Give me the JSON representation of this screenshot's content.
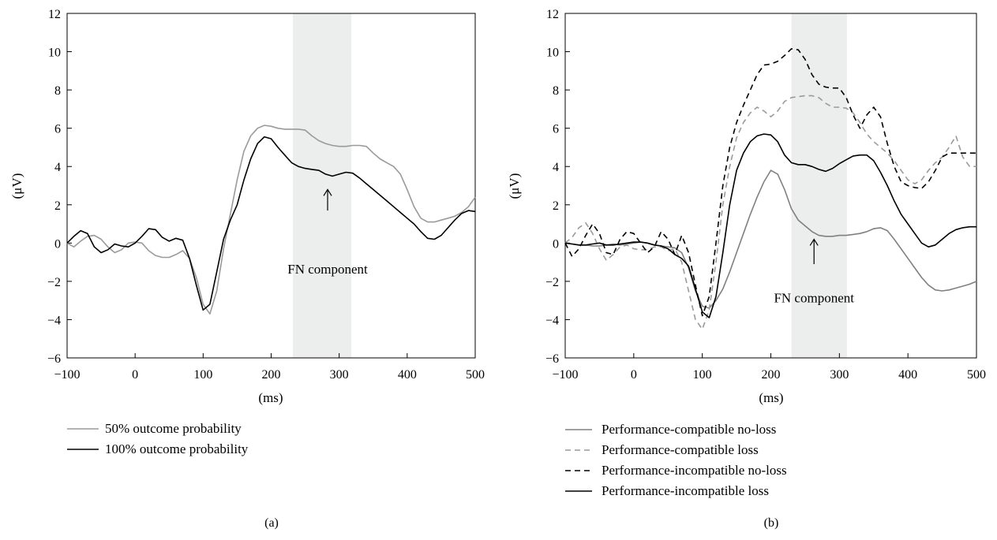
{
  "chart_data": [
    {
      "type": "line",
      "panel_label": "(a)",
      "xlabel": "(ms)",
      "ylabel": "(μV)",
      "xlim": [
        -100,
        500
      ],
      "ylim": [
        -6,
        12
      ],
      "xticks": [
        -100,
        0,
        100,
        200,
        300,
        400,
        500
      ],
      "yticks": [
        -6,
        -4,
        -2,
        0,
        2,
        4,
        6,
        8,
        10,
        12
      ],
      "shaded_region": [
        232,
        318
      ],
      "grid": false,
      "legend_position": "below",
      "annotation": {
        "text": "FN component",
        "arrow_x": 283,
        "arrow_from_y": 1.7,
        "arrow_to_y": 2.8,
        "text_x": 283,
        "text_y": -1.6
      },
      "series": [
        {
          "name": "50% outcome probability",
          "color": "#9a9a9a",
          "dash": "solid",
          "width": 1.6,
          "x": [
            -100,
            -90,
            -80,
            -70,
            -60,
            -50,
            -40,
            -30,
            -20,
            -10,
            0,
            10,
            20,
            30,
            40,
            50,
            60,
            70,
            80,
            90,
            100,
            110,
            120,
            130,
            140,
            150,
            160,
            170,
            180,
            190,
            200,
            210,
            220,
            230,
            240,
            250,
            260,
            270,
            280,
            290,
            300,
            310,
            320,
            330,
            340,
            350,
            360,
            370,
            380,
            390,
            400,
            410,
            420,
            430,
            440,
            450,
            460,
            470,
            480,
            490,
            500
          ],
          "y": [
            0,
            -0.2,
            0.1,
            0.35,
            0.4,
            0.2,
            -0.2,
            -0.5,
            -0.35,
            0,
            0.05,
            0,
            -0.4,
            -0.65,
            -0.75,
            -0.75,
            -0.6,
            -0.4,
            -0.8,
            -1.8,
            -3.2,
            -3.7,
            -2.5,
            -0.3,
            1.5,
            3.3,
            4.8,
            5.6,
            6.0,
            6.15,
            6.1,
            6.0,
            5.95,
            5.95,
            5.95,
            5.9,
            5.6,
            5.35,
            5.2,
            5.1,
            5.05,
            5.05,
            5.1,
            5.1,
            5.05,
            4.7,
            4.4,
            4.2,
            4.0,
            3.6,
            2.8,
            1.9,
            1.3,
            1.1,
            1.1,
            1.2,
            1.3,
            1.4,
            1.6,
            1.9,
            2.4
          ]
        },
        {
          "name": "100% outcome probability",
          "color": "#000000",
          "dash": "solid",
          "width": 1.6,
          "x": [
            -100,
            -90,
            -80,
            -70,
            -60,
            -50,
            -40,
            -30,
            -20,
            -10,
            0,
            10,
            20,
            30,
            40,
            50,
            60,
            70,
            80,
            90,
            100,
            110,
            120,
            130,
            140,
            150,
            160,
            170,
            180,
            190,
            200,
            210,
            220,
            230,
            240,
            250,
            260,
            270,
            280,
            290,
            300,
            310,
            320,
            330,
            340,
            350,
            360,
            370,
            380,
            390,
            400,
            410,
            420,
            430,
            440,
            450,
            460,
            470,
            480,
            490,
            500
          ],
          "y": [
            0,
            0.35,
            0.65,
            0.5,
            -0.2,
            -0.5,
            -0.35,
            -0.05,
            -0.15,
            -0.2,
            0,
            0.35,
            0.75,
            0.7,
            0.3,
            0.1,
            0.25,
            0.15,
            -0.8,
            -2.2,
            -3.5,
            -3.2,
            -1.5,
            0.2,
            1.2,
            2.0,
            3.3,
            4.4,
            5.2,
            5.55,
            5.45,
            5.0,
            4.6,
            4.2,
            4.0,
            3.9,
            3.85,
            3.8,
            3.6,
            3.5,
            3.6,
            3.7,
            3.65,
            3.4,
            3.1,
            2.8,
            2.5,
            2.2,
            1.9,
            1.6,
            1.3,
            1.0,
            0.6,
            0.25,
            0.2,
            0.4,
            0.8,
            1.2,
            1.55,
            1.7,
            1.65
          ]
        }
      ]
    },
    {
      "type": "line",
      "panel_label": "(b)",
      "xlabel": "(ms)",
      "ylabel": "(μV)",
      "xlim": [
        -100,
        500
      ],
      "ylim": [
        -6,
        12
      ],
      "xticks": [
        -100,
        0,
        100,
        200,
        300,
        400,
        500
      ],
      "yticks": [
        -6,
        -4,
        -2,
        0,
        2,
        4,
        6,
        8,
        10,
        12
      ],
      "shaded_region": [
        230,
        311
      ],
      "grid": false,
      "legend_position": "below",
      "annotation": {
        "text": "FN component",
        "arrow_x": 263,
        "arrow_from_y": -1.1,
        "arrow_to_y": 0.2,
        "text_x": 263,
        "text_y": -3.1
      },
      "series": [
        {
          "name": "Performance-compatible no-loss",
          "color": "#808080",
          "dash": "solid",
          "width": 1.6,
          "x": [
            -100,
            -90,
            -80,
            -70,
            -60,
            -50,
            -40,
            -30,
            -20,
            -10,
            0,
            10,
            20,
            30,
            40,
            50,
            60,
            70,
            80,
            90,
            100,
            110,
            120,
            130,
            140,
            150,
            160,
            170,
            180,
            190,
            200,
            210,
            220,
            230,
            240,
            250,
            260,
            270,
            280,
            290,
            300,
            310,
            320,
            330,
            340,
            350,
            360,
            370,
            380,
            390,
            400,
            410,
            420,
            430,
            440,
            450,
            460,
            470,
            480,
            490,
            500
          ],
          "y": [
            0,
            -0.05,
            -0.1,
            -0.1,
            -0.15,
            -0.15,
            -0.1,
            -0.05,
            -0.1,
            -0.05,
            0,
            0.05,
            0,
            -0.1,
            -0.15,
            -0.2,
            -0.25,
            -0.5,
            -1.3,
            -2.5,
            -3.3,
            -3.4,
            -3.0,
            -2.4,
            -1.5,
            -0.5,
            0.5,
            1.5,
            2.4,
            3.2,
            3.8,
            3.6,
            2.8,
            1.8,
            1.2,
            0.9,
            0.6,
            0.4,
            0.35,
            0.35,
            0.4,
            0.4,
            0.45,
            0.5,
            0.6,
            0.75,
            0.8,
            0.65,
            0.2,
            -0.3,
            -0.8,
            -1.3,
            -1.8,
            -2.2,
            -2.45,
            -2.5,
            -2.45,
            -2.35,
            -2.25,
            -2.15,
            -2.0
          ]
        },
        {
          "name": "Performance-compatible loss",
          "color": "#9a9a9a",
          "dash": "dashed",
          "width": 1.6,
          "x": [
            -100,
            -90,
            -80,
            -70,
            -60,
            -50,
            -40,
            -30,
            -20,
            -10,
            0,
            10,
            20,
            30,
            40,
            50,
            60,
            70,
            80,
            90,
            100,
            110,
            120,
            130,
            140,
            150,
            160,
            170,
            180,
            190,
            200,
            210,
            220,
            230,
            240,
            250,
            260,
            270,
            280,
            290,
            300,
            310,
            320,
            330,
            340,
            350,
            360,
            370,
            380,
            390,
            400,
            410,
            420,
            430,
            440,
            450,
            460,
            470,
            480,
            490,
            500
          ],
          "y": [
            0,
            0.3,
            0.8,
            1.05,
            0.5,
            -0.3,
            -0.9,
            -0.6,
            -0.2,
            -0.1,
            -0.3,
            -0.35,
            -0.35,
            -0.2,
            -0.2,
            -0.4,
            -0.3,
            -1.0,
            -2.5,
            -4.0,
            -4.5,
            -3.5,
            -1.0,
            2.0,
            4.0,
            5.5,
            6.3,
            6.8,
            7.1,
            6.9,
            6.6,
            6.9,
            7.4,
            7.6,
            7.65,
            7.7,
            7.7,
            7.6,
            7.3,
            7.1,
            7.1,
            7.05,
            6.8,
            6.3,
            5.7,
            5.3,
            5.0,
            4.7,
            4.3,
            3.8,
            3.3,
            3.1,
            3.3,
            3.8,
            4.2,
            4.5,
            5.0,
            5.6,
            4.5,
            4.0,
            4.0
          ]
        },
        {
          "name": "Performance-incompatible no-loss",
          "color": "#000000",
          "dash": "dashed",
          "width": 1.6,
          "x": [
            -100,
            -90,
            -80,
            -70,
            -60,
            -50,
            -40,
            -30,
            -20,
            -10,
            0,
            10,
            20,
            30,
            40,
            50,
            60,
            70,
            80,
            90,
            100,
            110,
            120,
            130,
            140,
            150,
            160,
            170,
            180,
            190,
            200,
            210,
            220,
            230,
            240,
            250,
            260,
            270,
            280,
            290,
            300,
            310,
            320,
            330,
            340,
            350,
            360,
            370,
            380,
            390,
            400,
            410,
            420,
            430,
            440,
            450,
            460,
            470,
            480,
            490,
            500
          ],
          "y": [
            0,
            -0.7,
            -0.3,
            0.4,
            1.0,
            0.5,
            -0.5,
            -0.6,
            0.2,
            0.6,
            0.5,
            0.0,
            -0.5,
            -0.2,
            0.6,
            0.2,
            -0.6,
            0.4,
            -0.5,
            -2.2,
            -3.8,
            -2.8,
            0.0,
            3.0,
            5.0,
            6.3,
            7.2,
            8.0,
            8.8,
            9.3,
            9.35,
            9.5,
            9.8,
            10.15,
            10.1,
            9.6,
            8.8,
            8.3,
            8.15,
            8.1,
            8.1,
            7.6,
            6.7,
            6.0,
            6.7,
            7.1,
            6.6,
            5.2,
            4.0,
            3.2,
            3.0,
            2.9,
            2.85,
            3.2,
            3.8,
            4.5,
            4.7,
            4.7,
            4.7,
            4.7,
            4.7
          ]
        },
        {
          "name": "Performance-incompatible loss",
          "color": "#000000",
          "dash": "solid",
          "width": 1.6,
          "x": [
            -100,
            -90,
            -80,
            -70,
            -60,
            -50,
            -40,
            -30,
            -20,
            -10,
            0,
            10,
            20,
            30,
            40,
            50,
            60,
            70,
            80,
            90,
            100,
            110,
            120,
            130,
            140,
            150,
            160,
            170,
            180,
            190,
            200,
            210,
            220,
            230,
            240,
            250,
            260,
            270,
            280,
            290,
            300,
            310,
            320,
            330,
            340,
            350,
            360,
            370,
            380,
            390,
            400,
            410,
            420,
            430,
            440,
            450,
            460,
            470,
            480,
            490,
            500
          ],
          "y": [
            0,
            -0.05,
            -0.1,
            -0.1,
            -0.05,
            0,
            -0.1,
            -0.1,
            -0.05,
            0,
            0.05,
            0.05,
            0,
            -0.1,
            -0.15,
            -0.3,
            -0.6,
            -0.8,
            -1.2,
            -2.4,
            -3.6,
            -3.9,
            -2.8,
            -0.5,
            2.0,
            3.8,
            4.7,
            5.3,
            5.6,
            5.7,
            5.65,
            5.3,
            4.6,
            4.2,
            4.1,
            4.1,
            4.0,
            3.85,
            3.75,
            3.9,
            4.15,
            4.35,
            4.55,
            4.6,
            4.6,
            4.3,
            3.7,
            3.0,
            2.2,
            1.5,
            1.0,
            0.5,
            0.0,
            -0.2,
            -0.1,
            0.2,
            0.5,
            0.7,
            0.8,
            0.85,
            0.85
          ]
        }
      ]
    }
  ]
}
